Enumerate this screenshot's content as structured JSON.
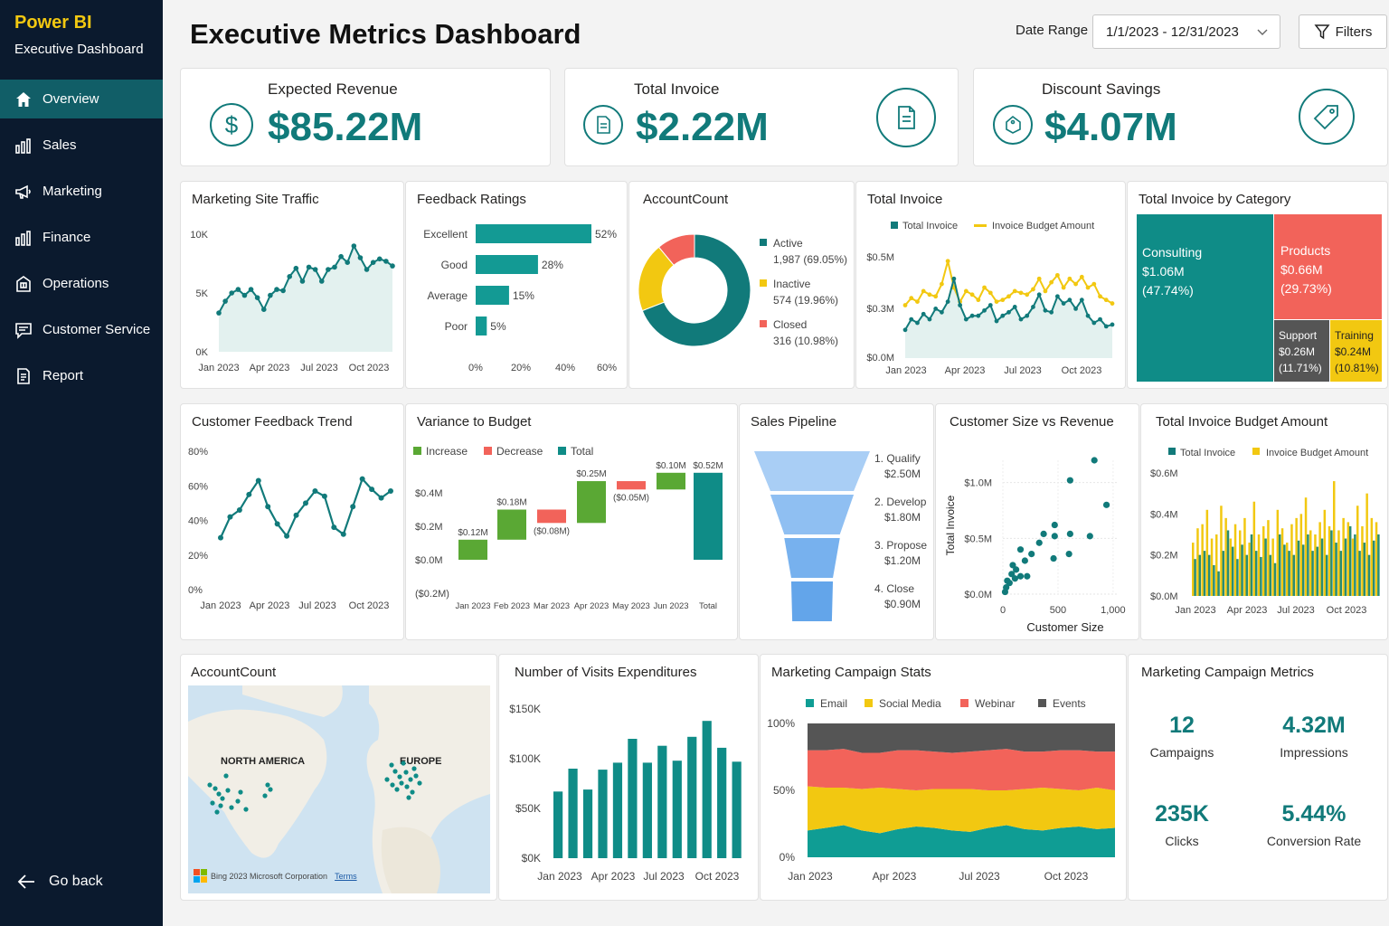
{
  "app": {
    "name": "Power BI",
    "subtitle": "Executive Dashboard"
  },
  "nav": [
    {
      "label": "Overview",
      "icon": "home-icon",
      "active": true
    },
    {
      "label": "Sales",
      "icon": "bar-chart-icon",
      "active": false
    },
    {
      "label": "Marketing",
      "icon": "megaphone-icon",
      "active": false
    },
    {
      "label": "Finance",
      "icon": "bar-chart-icon",
      "active": false
    },
    {
      "label": "Operations",
      "icon": "building-icon",
      "active": false
    },
    {
      "label": "Customer Service",
      "icon": "chat-icon",
      "active": false
    },
    {
      "label": "Report",
      "icon": "document-icon",
      "active": false
    }
  ],
  "go_back": "Go back",
  "header": {
    "title": "Executive Metrics Dashboard",
    "date_label": "Date Range",
    "date_value": "1/1/2023 - 12/31/2023",
    "filters": "Filters"
  },
  "kpis": [
    {
      "label": "Expected Revenue",
      "value": "$85.22M",
      "icon": "dollar-icon"
    },
    {
      "label": "Total Invoice",
      "value": "$2.22M",
      "icon": "invoice-icon"
    },
    {
      "label": "Discount Savings",
      "value": "$4.07M",
      "icon": "tag-icon"
    }
  ],
  "colors": {
    "teal": "#117a7a",
    "yellow": "#f2c811",
    "red": "#f2635a",
    "green": "#5aa834",
    "grey": "#555555",
    "sidebar": "#0b1a2e",
    "active": "#115e67"
  },
  "chart_data": [
    {
      "id": "site_traffic",
      "type": "area",
      "title": "Marketing Site Traffic",
      "x": [
        "Jan 2023",
        "",
        "",
        "",
        "",
        "",
        "",
        "",
        "",
        "",
        "",
        "",
        "",
        "",
        "",
        "",
        "",
        "",
        "",
        "",
        "",
        "",
        "",
        "",
        "Oct 2023",
        "",
        "",
        ""
      ],
      "x_ticks": [
        "Jan 2023",
        "Apr 2023",
        "Jul 2023",
        "Oct 2023"
      ],
      "y_ticks": [
        "10K",
        "5K",
        "0K"
      ],
      "ylim": [
        0,
        10000
      ],
      "values": [
        3300,
        4300,
        5000,
        5300,
        4800,
        5300,
        4600,
        3600,
        4800,
        5300,
        5200,
        6400,
        7100,
        6000,
        7200,
        7000,
        6000,
        7000,
        7200,
        8100,
        7600,
        9000,
        8000,
        7000,
        7600,
        7900,
        7700,
        7300
      ]
    },
    {
      "id": "feedback_ratings",
      "type": "bar",
      "title": "Feedback Ratings",
      "categories": [
        "Excellent",
        "Good",
        "Average",
        "Poor"
      ],
      "values": [
        52,
        28,
        15,
        5
      ],
      "labels": [
        "52%",
        "28%",
        "15%",
        "5%"
      ],
      "x_ticks": [
        "0%",
        "20%",
        "40%",
        "60%"
      ],
      "xlim": [
        0,
        60
      ]
    },
    {
      "id": "account_count",
      "type": "pie",
      "title": "AccountCount",
      "slices": [
        {
          "name": "Active",
          "value": 1987,
          "label": "1,987 (69.05%)",
          "color": "#117a7a"
        },
        {
          "name": "Inactive",
          "value": 574,
          "label": "574 (19.96%)",
          "color": "#f2c811"
        },
        {
          "name": "Closed",
          "value": 316,
          "label": "316 (10.98%)",
          "color": "#f2635a"
        }
      ]
    },
    {
      "id": "total_invoice_line",
      "type": "line",
      "title": "Total Invoice",
      "series": [
        {
          "name": "Total Invoice",
          "values": [
            0.16,
            0.22,
            0.2,
            0.25,
            0.22,
            0.28,
            0.26,
            0.32,
            0.45,
            0.3,
            0.22,
            0.24,
            0.24,
            0.27,
            0.3,
            0.21,
            0.24,
            0.26,
            0.29,
            0.22,
            0.24,
            0.29,
            0.36,
            0.27,
            0.26,
            0.35,
            0.31,
            0.33,
            0.28,
            0.33,
            0.24,
            0.2,
            0.22,
            0.18,
            0.19
          ]
        },
        {
          "name": "Invoice Budget Amount",
          "values": [
            0.3,
            0.34,
            0.32,
            0.38,
            0.36,
            0.35,
            0.42,
            0.55,
            0.4,
            0.32,
            0.38,
            0.36,
            0.33,
            0.4,
            0.37,
            0.32,
            0.33,
            0.35,
            0.38,
            0.37,
            0.36,
            0.39,
            0.45,
            0.38,
            0.43,
            0.47,
            0.4,
            0.45,
            0.42,
            0.46,
            0.4,
            0.42,
            0.35,
            0.33,
            0.31
          ]
        }
      ],
      "x_ticks": [
        "Jan 2023",
        "Apr 2023",
        "Jul 2023",
        "Oct 2023"
      ],
      "y_ticks": [
        "$0.5M",
        "$0.3M",
        "$0.0M"
      ],
      "ylim": [
        0,
        0.6
      ]
    },
    {
      "id": "invoice_by_category",
      "type": "treemap",
      "title": "Total Invoice by Category",
      "items": [
        {
          "name": "Consulting",
          "value": "$1.06M",
          "pct": "(47.74%)",
          "color": "#0f8c87"
        },
        {
          "name": "Products",
          "value": "$0.66M",
          "pct": "(29.73%)",
          "color": "#f2635a"
        },
        {
          "name": "Support",
          "value": "$0.26M",
          "pct": "(11.71%)",
          "color": "#555555"
        },
        {
          "name": "Training",
          "value": "$0.24M",
          "pct": "(10.81%)",
          "color": "#f2c811"
        }
      ]
    },
    {
      "id": "feedback_trend",
      "type": "line",
      "title": "Customer Feedback Trend",
      "values": [
        30,
        42,
        46,
        55,
        63,
        48,
        38,
        31,
        43,
        50,
        57,
        54,
        36,
        32,
        48,
        64,
        58,
        53,
        57
      ],
      "x_ticks": [
        "Jan 2023",
        "Apr 2023",
        "Jul 2023",
        "Oct 2023"
      ],
      "y_ticks": [
        "80%",
        "60%",
        "40%",
        "20%",
        "0%"
      ],
      "ylim": [
        0,
        80
      ]
    },
    {
      "id": "variance_budget",
      "type": "bar",
      "title": "Variance to Budget",
      "legend": [
        "Increase",
        "Decrease",
        "Total"
      ],
      "categories": [
        "Jan 2023",
        "Feb 2023",
        "Mar 2023",
        "Apr 2023",
        "May 2023",
        "Jun 2023",
        "Total"
      ],
      "values": [
        0.12,
        0.18,
        -0.08,
        0.25,
        -0.05,
        0.1,
        0.52
      ],
      "labels": [
        "$0.12M",
        "$0.18M",
        "($0.08M)",
        "$0.25M",
        "($0.05M)",
        "$0.10M",
        "$0.52M"
      ],
      "y_ticks": [
        "$0.4M",
        "$0.2M",
        "$0.0M",
        "($0.2M)"
      ],
      "ylim": [
        -0.2,
        0.55
      ]
    },
    {
      "id": "sales_pipeline",
      "type": "funnel",
      "title": "Sales Pipeline",
      "stages": [
        {
          "name": "1. Qualify",
          "value": "$2.50M",
          "num": 2.5
        },
        {
          "name": "2. Develop",
          "value": "$1.80M",
          "num": 1.8
        },
        {
          "name": "3. Propose",
          "value": "$1.20M",
          "num": 1.2
        },
        {
          "name": "4. Close",
          "value": "$0.90M",
          "num": 0.9
        }
      ]
    },
    {
      "id": "size_vs_revenue",
      "type": "scatter",
      "title": "Customer Size vs Revenue",
      "xlabel": "Customer Size",
      "ylabel": "Total Invoice",
      "x_ticks": [
        "0",
        "500",
        "1,000"
      ],
      "y_ticks": [
        "$1.0M",
        "$0.5M",
        "$0.0M"
      ],
      "xlim": [
        0,
        1050
      ],
      "ylim": [
        0,
        1.2
      ],
      "points": [
        [
          20,
          0.02
        ],
        [
          30,
          0.06
        ],
        [
          60,
          0.1
        ],
        [
          40,
          0.12
        ],
        [
          110,
          0.14
        ],
        [
          80,
          0.18
        ],
        [
          160,
          0.16
        ],
        [
          120,
          0.22
        ],
        [
          90,
          0.26
        ],
        [
          220,
          0.16
        ],
        [
          200,
          0.3
        ],
        [
          260,
          0.36
        ],
        [
          160,
          0.4
        ],
        [
          330,
          0.46
        ],
        [
          460,
          0.32
        ],
        [
          470,
          0.52
        ],
        [
          370,
          0.54
        ],
        [
          470,
          0.62
        ],
        [
          600,
          0.36
        ],
        [
          610,
          0.54
        ],
        [
          790,
          0.52
        ],
        [
          830,
          1.2
        ],
        [
          610,
          1.02
        ],
        [
          940,
          0.8
        ]
      ]
    },
    {
      "id": "invoice_budget_amount",
      "type": "bar",
      "title": "Total Invoice Budget Amount",
      "series": [
        {
          "name": "Total Invoice",
          "values": [
            0.18,
            0.2,
            0.22,
            0.2,
            0.15,
            0.12,
            0.22,
            0.32,
            0.24,
            0.18,
            0.25,
            0.2,
            0.3,
            0.22,
            0.19,
            0.28,
            0.2,
            0.16,
            0.3,
            0.25,
            0.22,
            0.2,
            0.27,
            0.25,
            0.3,
            0.22,
            0.24,
            0.28,
            0.2,
            0.32,
            0.26,
            0.22,
            0.28,
            0.34,
            0.3,
            0.22,
            0.26,
            0.2,
            0.27,
            0.3
          ]
        },
        {
          "name": "Invoice Budget Amount",
          "values": [
            0.26,
            0.33,
            0.35,
            0.42,
            0.28,
            0.3,
            0.44,
            0.38,
            0.28,
            0.35,
            0.32,
            0.38,
            0.26,
            0.46,
            0.3,
            0.34,
            0.37,
            0.28,
            0.42,
            0.33,
            0.26,
            0.35,
            0.38,
            0.4,
            0.48,
            0.32,
            0.3,
            0.36,
            0.42,
            0.34,
            0.56,
            0.32,
            0.38,
            0.36,
            0.28,
            0.44,
            0.34,
            0.5,
            0.38,
            0.36
          ]
        }
      ],
      "x_ticks": [
        "Jan 2023",
        "Apr 2023",
        "Jul 2023",
        "Oct 2023"
      ],
      "y_ticks": [
        "$0.6M",
        "$0.4M",
        "$0.2M",
        "$0.0M"
      ],
      "ylim": [
        0,
        0.6
      ]
    },
    {
      "id": "visits_expenditures",
      "type": "bar",
      "title": "Number of Visits Expenditures",
      "values": [
        67,
        90,
        69,
        89,
        96,
        120,
        96,
        113,
        98,
        122,
        138,
        111,
        97
      ],
      "x_ticks": [
        "Jan 2023",
        "Apr 2023",
        "Jul 2023",
        "Oct 2023"
      ],
      "y_ticks": [
        "$150K",
        "$100K",
        "$50K",
        "$0K"
      ],
      "ylim": [
        0,
        150
      ]
    },
    {
      "id": "campaign_stats",
      "type": "area",
      "title": "Marketing Campaign Stats",
      "legend": [
        "Email",
        "Social Media",
        "Webinar",
        "Events"
      ],
      "x_ticks": [
        "Jan 2023",
        "Apr 2023",
        "Jul 2023",
        "Oct 2023"
      ],
      "y_ticks": [
        "100%",
        "50%",
        "0%"
      ],
      "ylim": [
        0,
        100
      ],
      "series": [
        {
          "name": "Email",
          "values": [
            20,
            22,
            24,
            20,
            18,
            21,
            23,
            22,
            20,
            19,
            22,
            24,
            21,
            20,
            22,
            23,
            21,
            22
          ]
        },
        {
          "name": "Social Media",
          "values": [
            33,
            30,
            28,
            31,
            34,
            30,
            27,
            29,
            31,
            32,
            28,
            26,
            30,
            32,
            29,
            27,
            31,
            28
          ]
        },
        {
          "name": "Webinar",
          "values": [
            27,
            28,
            29,
            27,
            26,
            29,
            30,
            28,
            27,
            28,
            30,
            31,
            28,
            27,
            29,
            30,
            27,
            29
          ]
        },
        {
          "name": "Events",
          "values": [
            20,
            20,
            19,
            22,
            22,
            20,
            20,
            21,
            22,
            21,
            20,
            19,
            21,
            21,
            20,
            20,
            21,
            21
          ]
        }
      ]
    }
  ],
  "campaign_metrics": {
    "title": "Marketing Campaign Metrics",
    "items": [
      {
        "value": "12",
        "label": "Campaigns"
      },
      {
        "value": "4.32M",
        "label": "Impressions"
      },
      {
        "value": "235K",
        "label": "Clicks"
      },
      {
        "value": "5.44%",
        "label": "Conversion Rate"
      }
    ]
  },
  "map": {
    "title": "AccountCount",
    "labels": [
      "NORTH AMERICA",
      "EUROPE"
    ],
    "credit": "Bing 2023 Microsoft Corporation",
    "terms": "Terms"
  }
}
